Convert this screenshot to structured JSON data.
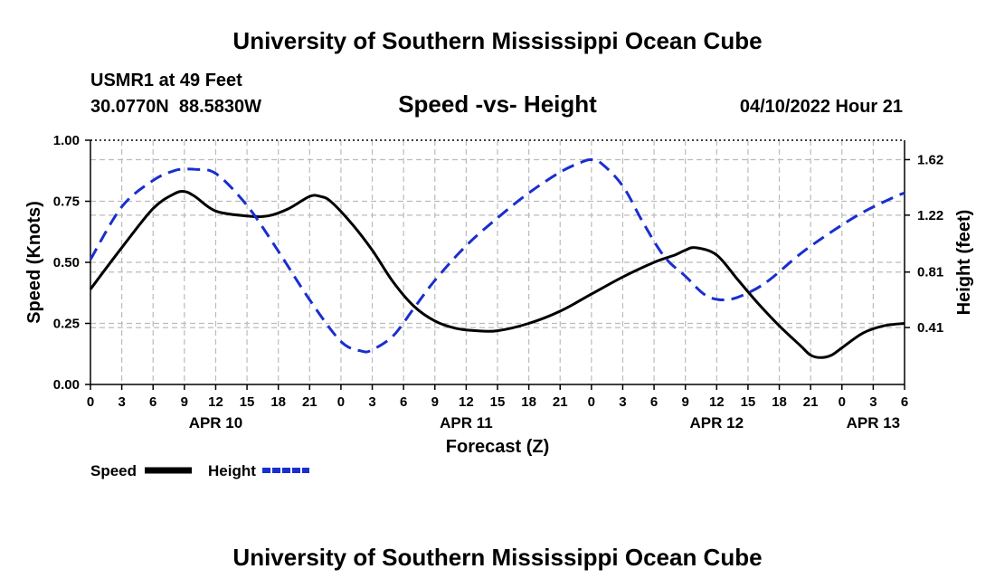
{
  "header": {
    "title": "University of Southern Mississippi Ocean Cube",
    "station": "USMR1 at 49 Feet",
    "coords": "30.0770N  88.5830W",
    "subtitle": "Speed -vs- Height",
    "datetime": "04/10/2022 Hour 21"
  },
  "footer": {
    "title": "University of Southern Mississippi Ocean Cube"
  },
  "chart_data": {
    "type": "line",
    "title": "Speed -vs- Height",
    "xlabel": "Forecast (Z)",
    "ylabel": "Speed (Knots)",
    "y2label": "Height (feet)",
    "x_range_hours": [
      0,
      78
    ],
    "ylim": [
      0,
      1.0
    ],
    "y2lim": [
      0.0,
      1.76
    ],
    "grid": true,
    "x_ticks": [
      {
        "h": 0,
        "label": "0"
      },
      {
        "h": 3,
        "label": "3"
      },
      {
        "h": 6,
        "label": "6"
      },
      {
        "h": 9,
        "label": "9"
      },
      {
        "h": 12,
        "label": "12"
      },
      {
        "h": 15,
        "label": "15"
      },
      {
        "h": 18,
        "label": "18"
      },
      {
        "h": 21,
        "label": "21"
      },
      {
        "h": 24,
        "label": "0"
      },
      {
        "h": 27,
        "label": "3"
      },
      {
        "h": 30,
        "label": "6"
      },
      {
        "h": 33,
        "label": "9"
      },
      {
        "h": 36,
        "label": "12"
      },
      {
        "h": 39,
        "label": "15"
      },
      {
        "h": 42,
        "label": "18"
      },
      {
        "h": 45,
        "label": "21"
      },
      {
        "h": 48,
        "label": "0"
      },
      {
        "h": 51,
        "label": "3"
      },
      {
        "h": 54,
        "label": "6"
      },
      {
        "h": 57,
        "label": "9"
      },
      {
        "h": 60,
        "label": "12"
      },
      {
        "h": 63,
        "label": "15"
      },
      {
        "h": 66,
        "label": "18"
      },
      {
        "h": 69,
        "label": "21"
      },
      {
        "h": 72,
        "label": "0"
      },
      {
        "h": 75,
        "label": "3"
      },
      {
        "h": 78,
        "label": "6"
      }
    ],
    "date_labels": [
      {
        "h": 12,
        "label": "APR 10"
      },
      {
        "h": 36,
        "label": "APR 11"
      },
      {
        "h": 60,
        "label": "APR 12"
      },
      {
        "h": 75,
        "label": "APR 13"
      }
    ],
    "y_ticks": [
      {
        "v": 0.0,
        "label": "0.00"
      },
      {
        "v": 0.25,
        "label": "0.25"
      },
      {
        "v": 0.5,
        "label": "0.50"
      },
      {
        "v": 0.75,
        "label": "0.75"
      },
      {
        "v": 1.0,
        "label": "1.00"
      }
    ],
    "y2_ticks": [
      {
        "v": 0.41,
        "label": "0.41"
      },
      {
        "v": 0.81,
        "label": "0.81"
      },
      {
        "v": 1.22,
        "label": "1.22"
      },
      {
        "v": 1.62,
        "label": "1.62"
      }
    ],
    "series": [
      {
        "name": "Speed",
        "color": "#000000",
        "dashed": false,
        "axis": "left",
        "x": [
          0,
          3,
          6,
          8,
          9,
          10,
          12,
          15,
          17,
          19,
          21,
          22,
          23,
          25,
          27,
          29,
          31,
          33,
          35,
          37,
          39,
          42,
          45,
          48,
          51,
          54,
          56,
          57,
          58,
          60,
          62,
          64,
          66,
          68,
          69,
          70,
          71,
          72,
          74,
          76,
          78
        ],
        "values": [
          0.39,
          0.56,
          0.72,
          0.78,
          0.79,
          0.77,
          0.71,
          0.69,
          0.69,
          0.72,
          0.77,
          0.77,
          0.75,
          0.66,
          0.55,
          0.42,
          0.32,
          0.26,
          0.23,
          0.22,
          0.22,
          0.25,
          0.3,
          0.37,
          0.44,
          0.5,
          0.53,
          0.55,
          0.56,
          0.53,
          0.43,
          0.33,
          0.24,
          0.16,
          0.12,
          0.11,
          0.12,
          0.15,
          0.21,
          0.24,
          0.25
        ]
      },
      {
        "name": "Height",
        "color": "#1a2ecf",
        "dashed": true,
        "axis": "right",
        "x": [
          0,
          3,
          6,
          8,
          9,
          10,
          12,
          15,
          18,
          21,
          24,
          26,
          27,
          29,
          31,
          33,
          36,
          39,
          42,
          45,
          47,
          48,
          49,
          51,
          53,
          55,
          57,
          59,
          61,
          63,
          65,
          68,
          71,
          74,
          77,
          78
        ],
        "values": [
          0.9,
          1.28,
          1.47,
          1.54,
          1.55,
          1.55,
          1.52,
          1.29,
          0.96,
          0.61,
          0.31,
          0.24,
          0.25,
          0.35,
          0.55,
          0.75,
          1.0,
          1.2,
          1.38,
          1.53,
          1.6,
          1.62,
          1.59,
          1.43,
          1.16,
          0.92,
          0.78,
          0.64,
          0.61,
          0.66,
          0.75,
          0.94,
          1.1,
          1.24,
          1.35,
          1.38
        ]
      }
    ],
    "legend": {
      "position": "bottom-left",
      "items": [
        {
          "label": "Speed",
          "color": "#000000",
          "dashed": false
        },
        {
          "label": "Height",
          "color": "#1a2ecf",
          "dashed": true
        }
      ]
    }
  }
}
